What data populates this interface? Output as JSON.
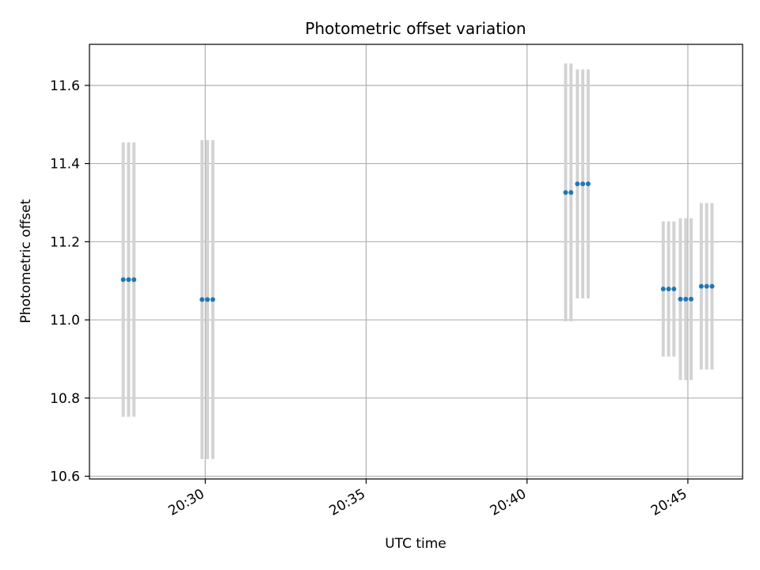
{
  "chart_data": {
    "type": "scatter",
    "title": "Photometric offset variation",
    "xlabel": "UTC time",
    "ylabel": "Photometric offset",
    "xlim": [
      "20:26:24",
      "20:46:42"
    ],
    "ylim": [
      10.593,
      11.705
    ],
    "x_ticks": [
      "20:30",
      "20:35",
      "20:40",
      "20:45"
    ],
    "y_ticks": [
      10.6,
      10.8,
      11.0,
      11.2,
      11.4,
      11.6
    ],
    "y_tick_labels": [
      "10.6",
      "10.8",
      "11.0",
      "11.2",
      "11.4",
      "11.6"
    ],
    "grid": true,
    "colors": {
      "marker": "#1f77b4",
      "errorbar": "#d3d3d3",
      "grid": "#b0b0b0"
    },
    "series": [
      {
        "points": [
          {
            "time": "20:27:27",
            "y": 11.103,
            "yerr": 0.351
          },
          {
            "time": "20:27:37",
            "y": 11.103,
            "yerr": 0.351
          },
          {
            "time": "20:27:47",
            "y": 11.103,
            "yerr": 0.351
          },
          {
            "time": "20:29:54",
            "y": 11.052,
            "yerr": 0.408
          },
          {
            "time": "20:30:04",
            "y": 11.052,
            "yerr": 0.408
          },
          {
            "time": "20:30:14",
            "y": 11.052,
            "yerr": 0.408
          },
          {
            "time": "20:41:12",
            "y": 11.326,
            "yerr": 0.33
          },
          {
            "time": "20:41:22",
            "y": 11.326,
            "yerr": 0.33
          },
          {
            "time": "20:41:34",
            "y": 11.348,
            "yerr": 0.293
          },
          {
            "time": "20:41:44",
            "y": 11.348,
            "yerr": 0.293
          },
          {
            "time": "20:41:54",
            "y": 11.348,
            "yerr": 0.293
          },
          {
            "time": "20:44:14",
            "y": 11.079,
            "yerr": 0.173
          },
          {
            "time": "20:44:24",
            "y": 11.079,
            "yerr": 0.173
          },
          {
            "time": "20:44:34",
            "y": 11.079,
            "yerr": 0.173
          },
          {
            "time": "20:44:46",
            "y": 11.053,
            "yerr": 0.207
          },
          {
            "time": "20:44:56",
            "y": 11.053,
            "yerr": 0.207
          },
          {
            "time": "20:45:06",
            "y": 11.053,
            "yerr": 0.207
          },
          {
            "time": "20:45:25",
            "y": 11.086,
            "yerr": 0.213
          },
          {
            "time": "20:45:35",
            "y": 11.086,
            "yerr": 0.213
          },
          {
            "time": "20:45:45",
            "y": 11.086,
            "yerr": 0.213
          }
        ]
      }
    ]
  }
}
